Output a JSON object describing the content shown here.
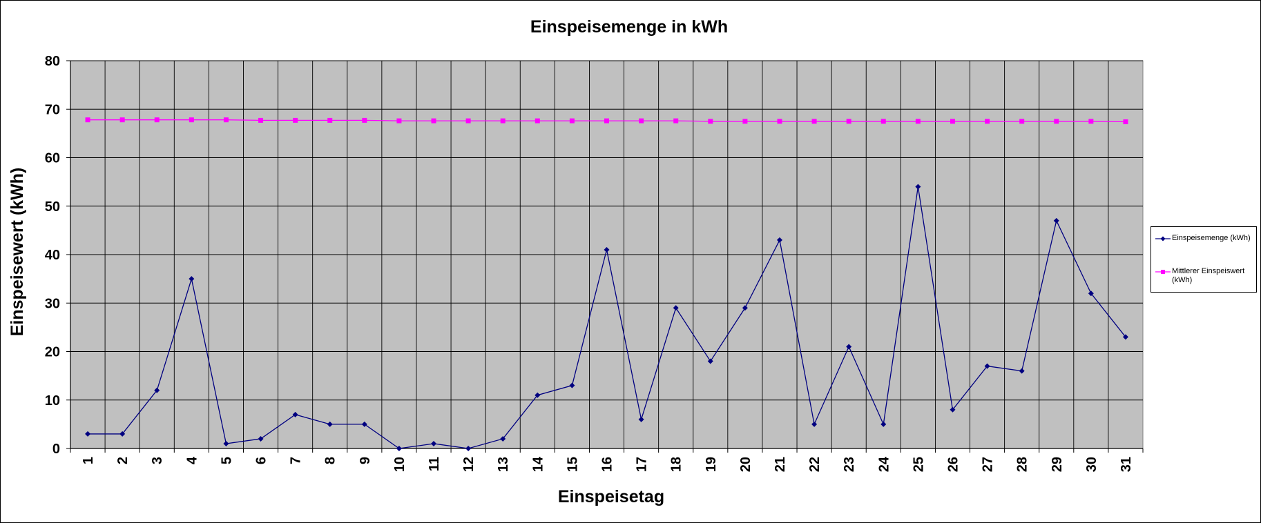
{
  "chart_data": {
    "type": "line",
    "title": "Einspeisemenge in kWh",
    "xlabel": "Einspeisetag",
    "ylabel": "Einspeisewert  (kWh)",
    "categories": [
      "1",
      "2",
      "3",
      "4",
      "5",
      "6",
      "7",
      "8",
      "9",
      "10",
      "11",
      "12",
      "13",
      "14",
      "15",
      "16",
      "17",
      "18",
      "19",
      "20",
      "21",
      "22",
      "23",
      "24",
      "25",
      "26",
      "27",
      "28",
      "29",
      "30",
      "31"
    ],
    "ylim": [
      0,
      80
    ],
    "yticks": [
      "0",
      "10",
      "20",
      "30",
      "40",
      "50",
      "60",
      "70",
      "80"
    ],
    "grid": true,
    "legend_position": "right",
    "plot_background": "#c0c0c0",
    "series": [
      {
        "name": "Einspeisemenge (kWh)",
        "color": "#000080",
        "marker": "diamond",
        "values": [
          3,
          3,
          12,
          35,
          1,
          2,
          7,
          5,
          5,
          0,
          1,
          0,
          2,
          11,
          13,
          41,
          6,
          29,
          18,
          29,
          43,
          5,
          21,
          5,
          54,
          8,
          17,
          16,
          47,
          32,
          23
        ]
      },
      {
        "name": "Mittlerer Einspeiswert (kWh)",
        "color": "#ff00ff",
        "marker": "square",
        "values": [
          67.8,
          67.8,
          67.8,
          67.8,
          67.8,
          67.7,
          67.7,
          67.7,
          67.7,
          67.6,
          67.6,
          67.6,
          67.6,
          67.6,
          67.6,
          67.6,
          67.6,
          67.6,
          67.5,
          67.5,
          67.5,
          67.5,
          67.5,
          67.5,
          67.5,
          67.5,
          67.5,
          67.5,
          67.5,
          67.5,
          67.4
        ]
      }
    ]
  }
}
